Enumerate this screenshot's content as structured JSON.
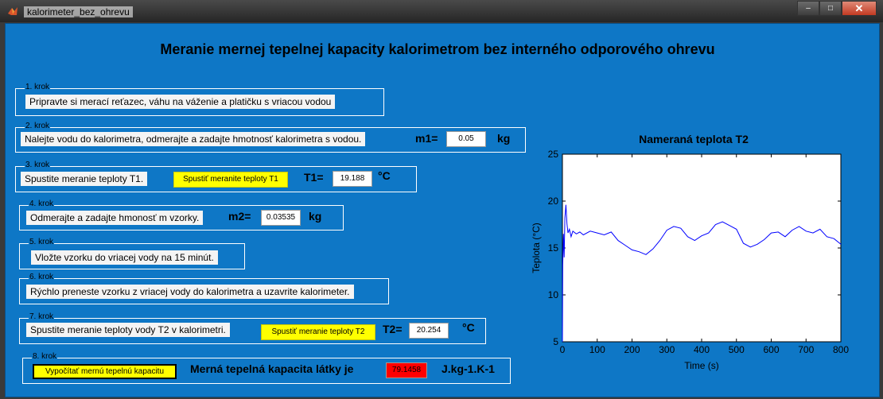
{
  "window": {
    "title": "kalorimeter_bez_ohrevu",
    "controls": {
      "minimize": "–",
      "maximize": "□",
      "close": "✕"
    }
  },
  "main_title": "Meranie mernej tepelnej kapacity kalorimetrom bez interného odporového ohrevu",
  "steps": {
    "s1": {
      "label": "1. krok",
      "text": "Pripravte si merací reťazec, váhu na váženie a platičku s vriacou vodou"
    },
    "s2": {
      "label": "2. krok",
      "text": "Nalejte vodu do kalorimetra, odmerajte a zadajte hmotnosť kalorimetra s vodou.",
      "var": "m1=",
      "value": "0.05",
      "unit": "kg"
    },
    "s3": {
      "label": "3. krok",
      "text": "Spustite meranie teploty T1.",
      "button": "Spustiť meranite teploty T1",
      "var": "T1=",
      "value": "19.188",
      "unit": "°C"
    },
    "s4": {
      "label": "4. krok",
      "text": "Odmerajte a zadajte hmonosť m vzorky.",
      "var": "m2=",
      "value": "0.03535",
      "unit": "kg"
    },
    "s5": {
      "label": "5. krok",
      "text": "Vložte vzorku do vriacej vody na 15 minút."
    },
    "s6": {
      "label": "6. krok",
      "text": "Rýchlo preneste vzorku z vriacej vody do kalorimetra a uzavrite kalorimeter."
    },
    "s7": {
      "label": "7. krok",
      "text": "Spustite meranie teploty vody T2 v kalorimetri.",
      "button": "Spustiť meranie teploty T2",
      "var": "T2=",
      "value": "20.254",
      "unit": "°C"
    },
    "s8": {
      "label": "8. krok",
      "button": "Vypočítať mernú tepelnú kapacitu",
      "result_label": "Merná tepelná kapacita látky je",
      "value": "79.1458",
      "unit": "J.kg-1.K-1"
    }
  },
  "colors": {
    "background": "#0e77c6",
    "button": "#ffff00",
    "result_bg": "#ff0000",
    "line": "#0000ff"
  },
  "chart_data": {
    "type": "line",
    "title": "Nameraná teplota T2",
    "xlabel": "Time (s)",
    "ylabel": "Teplota (°C)",
    "xlim": [
      0,
      800
    ],
    "ylim": [
      5,
      25
    ],
    "xticks": [
      0,
      100,
      200,
      300,
      400,
      500,
      600,
      700,
      800
    ],
    "yticks": [
      5,
      10,
      15,
      20,
      25
    ],
    "grid": false,
    "series": [
      {
        "x": [
          0,
          1,
          3,
          5,
          7,
          10,
          13,
          16,
          20,
          25,
          30,
          40,
          50,
          60,
          80,
          100,
          120,
          140,
          160,
          180,
          200,
          220,
          240,
          260,
          280,
          300,
          320,
          340,
          360,
          380,
          400,
          420,
          440,
          460,
          480,
          500,
          520,
          540,
          560,
          580,
          600,
          620,
          640,
          660,
          680,
          700,
          720,
          740,
          760,
          780,
          800
        ],
        "y": [
          5,
          13.2,
          16.5,
          14.0,
          18.2,
          19.6,
          17.6,
          16.6,
          17.0,
          16.2,
          16.8,
          16.5,
          16.7,
          16.4,
          16.8,
          16.6,
          16.4,
          16.7,
          15.8,
          15.3,
          14.8,
          14.6,
          14.3,
          14.9,
          15.8,
          16.9,
          17.3,
          17.1,
          16.2,
          15.8,
          16.3,
          16.6,
          17.5,
          17.8,
          17.4,
          17.0,
          15.5,
          15.1,
          15.4,
          15.9,
          16.6,
          16.7,
          16.2,
          16.9,
          17.3,
          16.8,
          16.6,
          17.0,
          16.2,
          16.0,
          15.4
        ]
      }
    ]
  }
}
